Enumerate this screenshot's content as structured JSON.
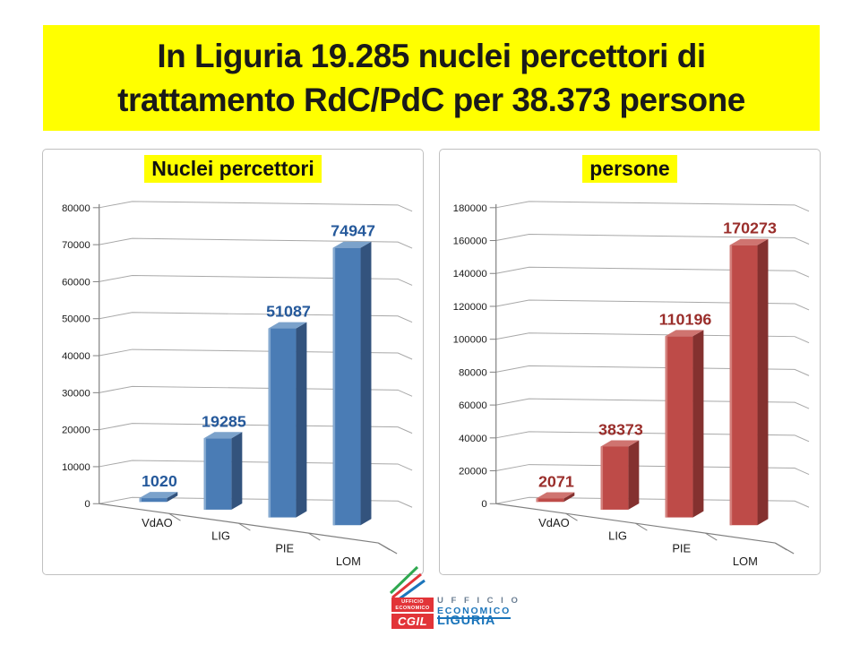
{
  "slide": {
    "title_line1": "In Liguria 19.285 nuclei percettori di",
    "title_line2": "trattamento RdC/PdC per 38.373 persone",
    "banner_color": "#FFFF00",
    "title_text_color": "#1a1a1a"
  },
  "chart_data": [
    {
      "type": "bar",
      "title": "Nuclei percettori",
      "categories": [
        "VdAO",
        "LIG",
        "PIE",
        "LOM"
      ],
      "values": [
        1020,
        19285,
        51087,
        74947
      ],
      "data_labels": [
        "1020",
        "19285",
        "51087",
        "74947"
      ],
      "ylim": [
        0,
        80000
      ],
      "ytick_step": 10000,
      "ytick_labels": [
        "0",
        "10000",
        "20000",
        "30000",
        "40000",
        "50000",
        "60000",
        "70000",
        "80000"
      ],
      "grid": true,
      "legend": "none",
      "effect": "3d",
      "colors": {
        "front": "#4A7CB5",
        "top": "#7BA2CB",
        "side": "#33537D",
        "edge": "#83A8D0",
        "label": "#25599B"
      }
    },
    {
      "type": "bar",
      "title": "persone",
      "categories": [
        "VdAO",
        "LIG",
        "PIE",
        "LOM"
      ],
      "values": [
        2071,
        38373,
        110196,
        170273
      ],
      "data_labels": [
        "2071",
        "38373",
        "110196",
        "170273"
      ],
      "ylim": [
        0,
        180000
      ],
      "ytick_step": 20000,
      "ytick_labels": [
        "0",
        "20000",
        "40000",
        "60000",
        "80000",
        "100000",
        "120000",
        "140000",
        "160000",
        "180000"
      ],
      "grid": true,
      "legend": "none",
      "effect": "3d",
      "colors": {
        "front": "#BE4B48",
        "top": "#CF7470",
        "side": "#84312F",
        "edge": "#D37E7A",
        "label": "#9A2E2B"
      }
    }
  ],
  "logo": {
    "box_line1": "UFFICIO",
    "box_line2": "ECONOMICO",
    "wordmark_line1": "U F F I C I O",
    "wordmark_line2": "ECONOMICO",
    "org": "CGIL",
    "region": "LIGURIA",
    "colors": {
      "red": "#E23438",
      "blue": "#1B75BB",
      "green": "#2FA84F",
      "gray_blue": "#6B7F93"
    }
  }
}
